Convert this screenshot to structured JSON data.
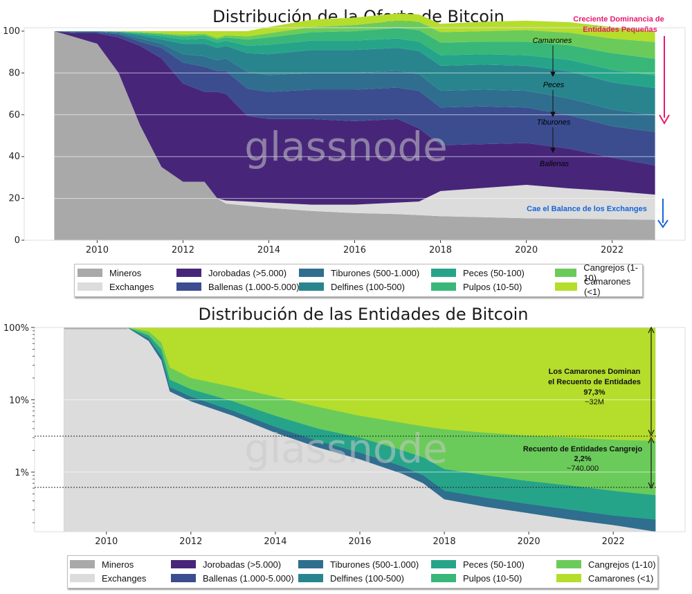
{
  "chart_data": [
    {
      "type": "area",
      "title": "Distribución de la Oferta de Bitcoin",
      "xlabel": "",
      "ylabel": "",
      "ylim": [
        0,
        100
      ],
      "y_ticks": [
        "0",
        "20",
        "40",
        "60",
        "80",
        "100"
      ],
      "x_ticks": [
        "2010",
        "2012",
        "2014",
        "2016",
        "2018",
        "2020",
        "2022"
      ],
      "x": [
        2009.0,
        2009.5,
        2010.0,
        2010.5,
        2011.0,
        2011.5,
        2012.0,
        2012.5,
        2012.8,
        2013.0,
        2013.5,
        2014.0,
        2015.0,
        2016.0,
        2017.0,
        2017.5,
        2018.0,
        2019.0,
        2020.0,
        2021.0,
        2022.0,
        2023.0
      ],
      "series": [
        {
          "name": "Mineros",
          "color": "#a9a9a9",
          "values": [
            100,
            97,
            94,
            80,
            55,
            35,
            28,
            28,
            20,
            17.5,
            16.5,
            15.5,
            14,
            13,
            12.5,
            12,
            11.5,
            11,
            10.5,
            10.3,
            10,
            9.8
          ]
        },
        {
          "name": "Exchanges",
          "color": "#dcdcdc",
          "values": [
            0,
            0,
            0,
            0,
            0,
            0,
            0,
            0,
            0,
            1.5,
            2,
            2.5,
            3,
            4,
            5.5,
            6.5,
            12,
            14,
            16,
            14.5,
            13.5,
            12
          ]
        },
        {
          "name": "Jorobadas (>5.000)",
          "color": "#47267a",
          "values": [
            0,
            2,
            5,
            17,
            38,
            52,
            47,
            43,
            51,
            51,
            41,
            40,
            41,
            40,
            40,
            35,
            22,
            21,
            20,
            19,
            16,
            14
          ]
        },
        {
          "name": "Ballenas (1.000-5.000)",
          "color": "#3b4d8f",
          "values": [
            0,
            0.5,
            0.5,
            1.5,
            2,
            5,
            10,
            12,
            10,
            11,
            13,
            13,
            14,
            15,
            15,
            18,
            18,
            18,
            17,
            16,
            15,
            16
          ]
        },
        {
          "name": "Tiburones (500-1.000)",
          "color": "#2f6e8e",
          "values": [
            0,
            0.2,
            0.2,
            0.5,
            1.5,
            2,
            4,
            5,
            5,
            6,
            8,
            8,
            8,
            8,
            8,
            8,
            8,
            8,
            8,
            8,
            8,
            8
          ]
        },
        {
          "name": "Delfines (100-500)",
          "color": "#29858d",
          "values": [
            0,
            0.2,
            0.2,
            0.5,
            1.5,
            2,
            5,
            6,
            6,
            6,
            9,
            10,
            11,
            11,
            11,
            11,
            12,
            12,
            12,
            13,
            13,
            13
          ]
        },
        {
          "name": "Peces (50-100)",
          "color": "#26a48a",
          "values": [
            0,
            0.1,
            0.1,
            0.2,
            0.7,
            1.5,
            2,
            2.5,
            2.5,
            2.5,
            3.5,
            4.5,
            4.5,
            4.5,
            4.5,
            4.5,
            5,
            5,
            5,
            5.5,
            6,
            6
          ]
        },
        {
          "name": "Pulpos (10-50)",
          "color": "#38b779",
          "values": [
            0,
            0,
            0,
            0.1,
            0.5,
            1,
            1.5,
            1.5,
            1.5,
            1.5,
            3,
            3.5,
            4,
            4.5,
            5,
            5.5,
            6,
            6,
            6.5,
            7,
            8,
            8
          ]
        },
        {
          "name": "Cangrejos (1-10)",
          "color": "#6bcb5a",
          "values": [
            0,
            0,
            0,
            0.1,
            0.3,
            0.5,
            0.8,
            0.8,
            0.8,
            1,
            1.5,
            2,
            2.5,
            3,
            3.5,
            4,
            5,
            5,
            5.5,
            6,
            7,
            8
          ]
        },
        {
          "name": "Camarones (<1)",
          "color": "#b5dd2b",
          "values": [
            0,
            0,
            0,
            0.1,
            0.5,
            1,
            1.7,
            1.2,
            3.2,
            2,
            2.5,
            3,
            3.5,
            3.5,
            3.5,
            3.5,
            4,
            4.5,
            4.5,
            5,
            5.5,
            5.2
          ]
        }
      ],
      "annotations": {
        "dominance": "Creciente Dominancia de Entidades Pequeñas",
        "exchanges": "Cae el Balance de los Exchanges",
        "labels": [
          "Camarones",
          "Peces",
          "Tiburones",
          "Ballenas"
        ]
      },
      "watermark": "glassnode",
      "legend_placement": "bottom"
    },
    {
      "type": "area",
      "title": "Distribución de las Entidades de Bitcoin",
      "xlabel": "",
      "ylabel": "",
      "y_scale": "log",
      "ylim": [
        0.15,
        100
      ],
      "y_ticks": [
        "1%",
        "10%",
        "100%"
      ],
      "x_ticks": [
        "2010",
        "2012",
        "2014",
        "2016",
        "2018",
        "2020",
        "2022"
      ],
      "boundaries": [
        {
          "name": "Exchanges top",
          "x": [
            2009.0,
            2010.0,
            2010.5,
            2011.0,
            2011.3,
            2011.5,
            2012.0,
            2013.0,
            2014.0,
            2015.0,
            2016.0,
            2017.0,
            2017.5,
            2018.0,
            2019.0,
            2020.0,
            2021.0,
            2022.0,
            2023.0
          ],
          "y": [
            95,
            99,
            99,
            65,
            35,
            13,
            9.5,
            6,
            3.5,
            2.2,
            1.5,
            0.95,
            0.7,
            0.42,
            0.33,
            0.27,
            0.22,
            0.185,
            0.15
          ]
        },
        {
          "name": "Delfines top",
          "x": [
            2009.0,
            2010.0,
            2010.5,
            2011.0,
            2011.3,
            2011.5,
            2012.0,
            2013.0,
            2014.0,
            2015.0,
            2016.0,
            2017.0,
            2017.5,
            2018.0,
            2019.0,
            2020.0,
            2021.0,
            2022.0,
            2023.0
          ],
          "y": [
            96,
            99,
            99.5,
            70,
            40,
            15,
            11,
            7,
            4.2,
            2.7,
            1.85,
            1.2,
            0.9,
            0.55,
            0.44,
            0.36,
            0.3,
            0.25,
            0.22
          ]
        },
        {
          "name": "Pulpos top",
          "x": [
            2009.0,
            2010.0,
            2010.5,
            2011.0,
            2011.3,
            2011.5,
            2012.0,
            2013.0,
            2014.0,
            2015.0,
            2016.0,
            2017.0,
            2017.5,
            2018.0,
            2019.0,
            2020.0,
            2021.0,
            2022.0,
            2023.0
          ],
          "y": [
            97,
            99.5,
            99.8,
            78,
            50,
            19,
            14,
            9.5,
            6,
            4,
            3,
            2,
            1.6,
            1.1,
            0.9,
            0.75,
            0.65,
            0.55,
            0.48
          ]
        },
        {
          "name": "Cangrejos top",
          "x": [
            2009.0,
            2010.0,
            2010.5,
            2011.0,
            2011.3,
            2011.5,
            2012.0,
            2013.0,
            2014.0,
            2015.0,
            2016.0,
            2017.0,
            2017.5,
            2018.0,
            2019.0,
            2020.0,
            2021.0,
            2022.0,
            2023.0
          ],
          "y": [
            99,
            99.8,
            100,
            88,
            62,
            28,
            20,
            15,
            11,
            8,
            6,
            4.8,
            4.3,
            3.9,
            3.5,
            3.2,
            3,
            2.8,
            2.7
          ]
        }
      ],
      "fills": {
        "exchanges": "#dcdcdc",
        "mineros": "#a9a9a9",
        "small_bands": "#2f6e8e",
        "pulpos": "#26a48a",
        "cangrejos": "#6bcb5a",
        "camarones": "#b5dd2b"
      },
      "annotations": {
        "camarones_line1": "Los Camarones Dominan",
        "camarones_line2": "el Recuento de Entidades",
        "camarones_pct": "97,3%",
        "camarones_count": "~32M",
        "cangrejo_line1": "Recuento de Entidades Cangrejo",
        "cangrejo_pct": "2,2%",
        "cangrejo_count": "~740.000"
      },
      "watermark": "glassnode",
      "legend_placement": "bottom"
    }
  ],
  "legend": {
    "items": [
      {
        "label": "Mineros",
        "color": "#a9a9a9"
      },
      {
        "label": "Exchanges",
        "color": "#dcdcdc"
      },
      {
        "label": "Jorobadas (>5.000)",
        "color": "#47267a"
      },
      {
        "label": "Ballenas (1.000-5.000)",
        "color": "#3b4d8f"
      },
      {
        "label": "Tiburones (500-1.000)",
        "color": "#2f6e8e"
      },
      {
        "label": "Delfines (100-500)",
        "color": "#29858d"
      },
      {
        "label": "Peces (50-100)",
        "color": "#26a48a"
      },
      {
        "label": "Pulpos (10-50)",
        "color": "#38b779"
      },
      {
        "label": "Cangrejos (1-10)",
        "color": "#6bcb5a"
      },
      {
        "label": "Camarones (<1)",
        "color": "#b5dd2b"
      }
    ]
  },
  "accent_colors": {
    "dominance_arrow": "#e6196b",
    "exchange_arrow": "#1565d8"
  }
}
